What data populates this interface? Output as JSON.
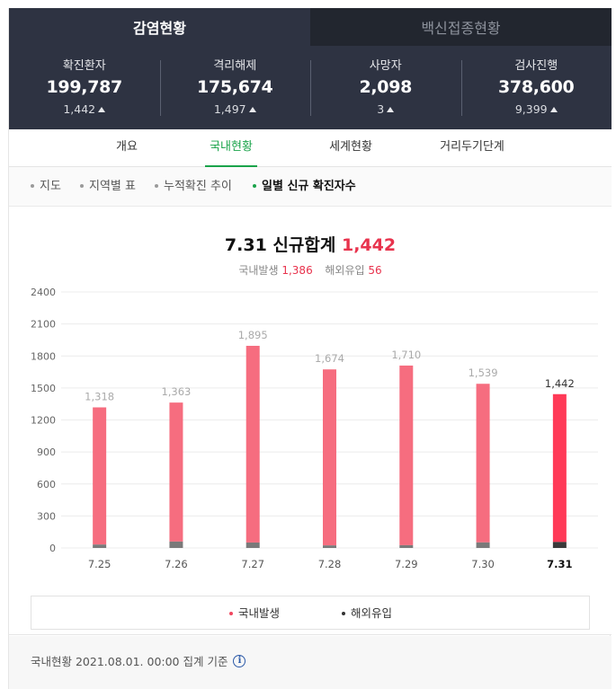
{
  "tabs": {
    "active": "감염현황",
    "inactive": "백신접종현황"
  },
  "stats": [
    {
      "label": "확진환자",
      "value": "199,787",
      "delta": "1,442"
    },
    {
      "label": "격리해제",
      "value": "175,674",
      "delta": "1,497"
    },
    {
      "label": "사망자",
      "value": "2,098",
      "delta": "3"
    },
    {
      "label": "검사진행",
      "value": "378,600",
      "delta": "9,399"
    }
  ],
  "subtabs": [
    "개요",
    "국내현황",
    "세계현황",
    "거리두기단계"
  ],
  "filters": [
    "지도",
    "지역별 표",
    "누적확진 추이",
    "일별 신규 확진자수"
  ],
  "headline": {
    "date": "7.31",
    "label": "신규합계",
    "total": "1,442"
  },
  "breakdown": {
    "domestic_label": "국내발생",
    "domestic": "1,386",
    "overseas_label": "해외유입",
    "overseas": "56"
  },
  "chart_data": {
    "type": "bar",
    "categories": [
      "7.25",
      "7.26",
      "7.27",
      "7.28",
      "7.29",
      "7.30",
      "7.31"
    ],
    "series": [
      {
        "name": "국내발생",
        "values": [
          1286,
          1303,
          1844,
          1650,
          1684,
          1487,
          1386
        ]
      },
      {
        "name": "해외유입",
        "values": [
          32,
          60,
          51,
          24,
          26,
          52,
          56
        ]
      }
    ],
    "totals": [
      "1,318",
      "1,363",
      "1,895",
      "1,674",
      "1,710",
      "1,539",
      "1,442"
    ],
    "ylim": [
      0,
      2400
    ],
    "yticks": [
      0,
      300,
      600,
      900,
      1200,
      1500,
      1800,
      2100,
      2400
    ],
    "stacked": true,
    "grid": true,
    "legend_position": "bottom",
    "colors": {
      "domestic": "#f66d7f",
      "domestic_latest": "#ff3a57",
      "overseas": "#7a7a7a",
      "overseas_latest": "#3a3a3a",
      "label": "#aaaaaa",
      "label_latest": "#333333"
    }
  },
  "legend": [
    "국내발생",
    "해외유입"
  ],
  "footer": {
    "text": "국내현황 2021.08.01. 00:00 집계 기준",
    "icon": "info-icon"
  }
}
